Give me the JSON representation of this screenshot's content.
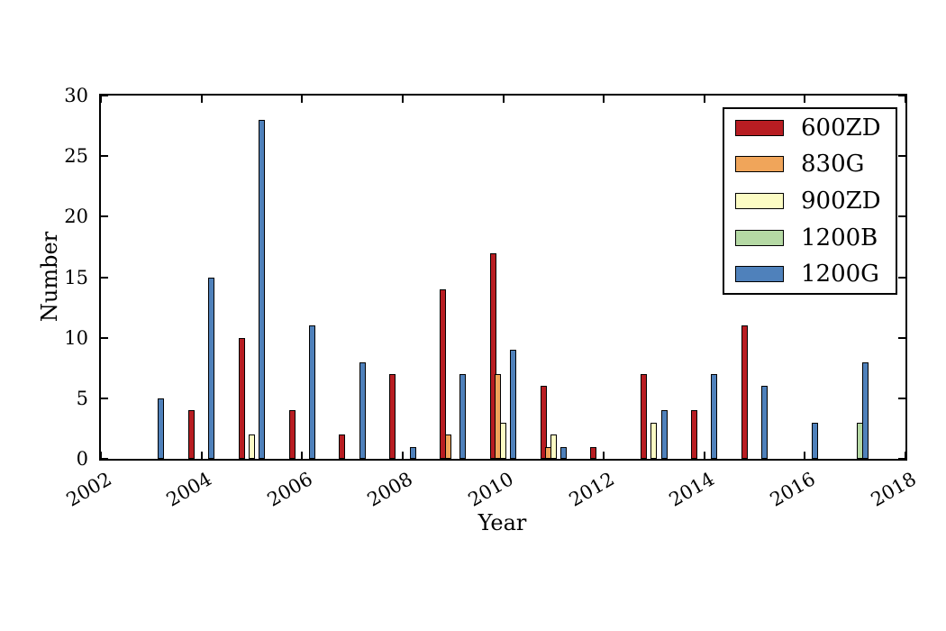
{
  "chart_data": {
    "type": "bar",
    "title": "",
    "xlabel": "Year",
    "ylabel": "Number",
    "xlim": [
      2002,
      2018
    ],
    "ylim": [
      0,
      30
    ],
    "x_ticks": [
      2002,
      2004,
      2006,
      2008,
      2010,
      2012,
      2014,
      2016,
      2018
    ],
    "y_ticks": [
      0,
      5,
      10,
      15,
      20,
      25,
      30
    ],
    "grid": false,
    "tick_direction": "in",
    "legend_position": "upper right",
    "bar_edge_color": "#000000",
    "categories": [
      2003,
      2004,
      2005,
      2006,
      2007,
      2008,
      2009,
      2010,
      2011,
      2012,
      2013,
      2014,
      2015,
      2016,
      2017
    ],
    "series": [
      {
        "name": "600ZD",
        "color": "#b81d22",
        "values": [
          0,
          4,
          10,
          4,
          2,
          7,
          14,
          17,
          6,
          1,
          7,
          4,
          11,
          0,
          0
        ]
      },
      {
        "name": "830G",
        "color": "#f0a55a",
        "values": [
          0,
          0,
          0,
          0,
          0,
          0,
          2,
          7,
          1,
          0,
          0,
          0,
          0,
          0,
          0
        ]
      },
      {
        "name": "900ZD",
        "color": "#fcfcc4",
        "values": [
          0,
          0,
          2,
          0,
          0,
          0,
          0,
          3,
          2,
          0,
          3,
          0,
          0,
          0,
          0
        ]
      },
      {
        "name": "1200B",
        "color": "#b5d9a4",
        "values": [
          0,
          0,
          0,
          0,
          0,
          0,
          0,
          0,
          0,
          0,
          0,
          0,
          0,
          0,
          3
        ]
      },
      {
        "name": "1200G",
        "color": "#4f81bb",
        "values": [
          5,
          15,
          28,
          11,
          8,
          1,
          7,
          9,
          1,
          0,
          4,
          7,
          6,
          3,
          8
        ]
      }
    ]
  }
}
